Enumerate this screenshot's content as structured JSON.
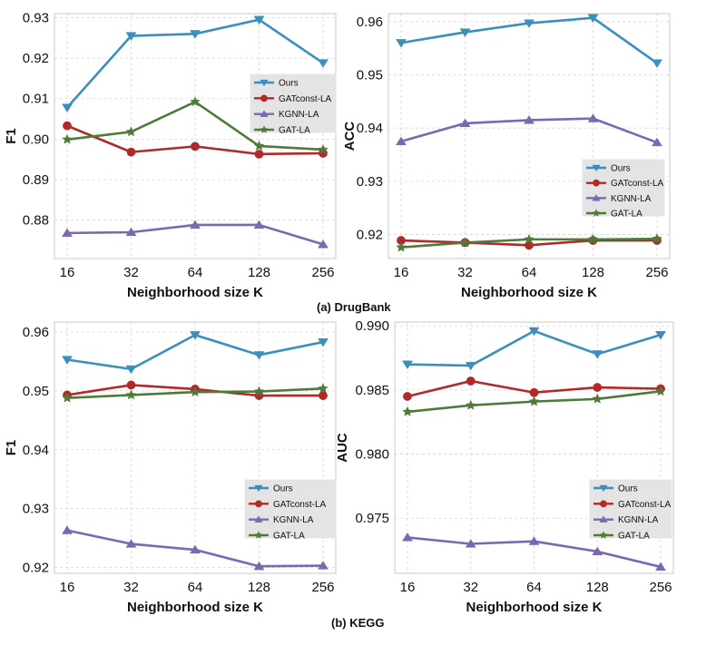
{
  "captions": {
    "a": "(a) DrugBank",
    "b": "(b) KEGG"
  },
  "colors": {
    "Ours": "#3a8fbd",
    "GATconst-LA": "#b02a2a",
    "KGNN-LA": "#7b68b0",
    "GAT-LA": "#4f7a3a"
  },
  "markers": {
    "Ours": "triangle-down",
    "GATconst-LA": "circle",
    "KGNN-LA": "triangle-up",
    "GAT-LA": "star"
  },
  "chart_data": [
    {
      "type": "line",
      "panel": "drugbank-f1",
      "x": [
        16,
        32,
        64,
        128,
        256
      ],
      "xtick_labels": [
        "16",
        "32",
        "64",
        "128",
        "256"
      ],
      "xlabel": "Neighborhood size K",
      "ylabel": "F1",
      "ylim": [
        0.8705,
        0.931
      ],
      "yticks": [
        0.88,
        0.89,
        0.9,
        0.91,
        0.92,
        0.93
      ],
      "ytick_labels": [
        "0.88",
        "0.89",
        "0.90",
        "0.91",
        "0.92",
        "0.93"
      ],
      "grid": true,
      "legend_placement": "center-right",
      "series": [
        {
          "name": "Ours",
          "values": [
            0.9078,
            0.9255,
            0.926,
            0.9295,
            0.9188
          ]
        },
        {
          "name": "GATconst-LA",
          "values": [
            0.9033,
            0.8968,
            0.8982,
            0.8963,
            0.8965
          ]
        },
        {
          "name": "KGNN-LA",
          "values": [
            0.8768,
            0.877,
            0.8788,
            0.8788,
            0.874
          ]
        },
        {
          "name": "GAT-LA",
          "values": [
            0.8999,
            0.9018,
            0.9092,
            0.8983,
            0.8974
          ]
        }
      ]
    },
    {
      "type": "line",
      "panel": "drugbank-acc",
      "x": [
        16,
        32,
        64,
        128,
        256
      ],
      "xtick_labels": [
        "16",
        "32",
        "64",
        "128",
        "256"
      ],
      "xlabel": "Neighborhood size K",
      "ylabel": "ACC",
      "ylim": [
        0.9155,
        0.9615
      ],
      "yticks": [
        0.92,
        0.93,
        0.94,
        0.95,
        0.96
      ],
      "ytick_labels": [
        "0.92",
        "0.93",
        "0.94",
        "0.95",
        "0.96"
      ],
      "grid": true,
      "legend_placement": "lower-right",
      "series": [
        {
          "name": "Ours",
          "values": [
            0.956,
            0.958,
            0.9597,
            0.9607,
            0.9522
          ]
        },
        {
          "name": "GATconst-LA",
          "values": [
            0.9189,
            0.9185,
            0.918,
            0.9189,
            0.9189
          ]
        },
        {
          "name": "KGNN-LA",
          "values": [
            0.9375,
            0.9409,
            0.9415,
            0.9418,
            0.9373
          ]
        },
        {
          "name": "GAT-LA",
          "values": [
            0.9176,
            0.9185,
            0.9191,
            0.9191,
            0.9192
          ]
        }
      ]
    },
    {
      "type": "line",
      "panel": "kegg-f1",
      "x": [
        16,
        32,
        64,
        128,
        256
      ],
      "xtick_labels": [
        "16",
        "32",
        "64",
        "128",
        "256"
      ],
      "xlabel": "Neighborhood size K",
      "ylabel": "F1",
      "ylim": [
        0.919,
        0.9617
      ],
      "yticks": [
        0.92,
        0.93,
        0.94,
        0.95,
        0.96
      ],
      "ytick_labels": [
        "0.92",
        "0.93",
        "0.94",
        "0.95",
        "0.96"
      ],
      "grid": true,
      "legend_placement": "lower-right",
      "series": [
        {
          "name": "Ours",
          "values": [
            0.9553,
            0.9537,
            0.9595,
            0.9561,
            0.9583
          ]
        },
        {
          "name": "GATconst-LA",
          "values": [
            0.9493,
            0.951,
            0.9503,
            0.9492,
            0.9492
          ]
        },
        {
          "name": "KGNN-LA",
          "values": [
            0.9263,
            0.924,
            0.923,
            0.9202,
            0.9203
          ]
        },
        {
          "name": "GAT-LA",
          "values": [
            0.9488,
            0.9493,
            0.9498,
            0.9499,
            0.9504
          ]
        }
      ]
    },
    {
      "type": "line",
      "panel": "kegg-auc",
      "x": [
        16,
        32,
        64,
        128,
        256
      ],
      "xtick_labels": [
        "16",
        "32",
        "64",
        "128",
        "256"
      ],
      "xlabel": "Neighborhood size K",
      "ylabel": "AUC",
      "ylim": [
        0.9707,
        0.9903
      ],
      "yticks": [
        0.975,
        0.98,
        0.985,
        0.99
      ],
      "ytick_labels": [
        "0.975",
        "0.980",
        "0.985",
        "0.990"
      ],
      "grid": true,
      "legend_placement": "lower-right",
      "series": [
        {
          "name": "Ours",
          "values": [
            0.987,
            0.9869,
            0.9896,
            0.9878,
            0.9893
          ]
        },
        {
          "name": "GATconst-LA",
          "values": [
            0.9845,
            0.9857,
            0.9848,
            0.9852,
            0.9851
          ]
        },
        {
          "name": "KGNN-LA",
          "values": [
            0.9735,
            0.973,
            0.9732,
            0.9724,
            0.9712
          ]
        },
        {
          "name": "GAT-LA",
          "values": [
            0.9833,
            0.9838,
            0.9841,
            0.9843,
            0.9849
          ]
        }
      ]
    }
  ]
}
